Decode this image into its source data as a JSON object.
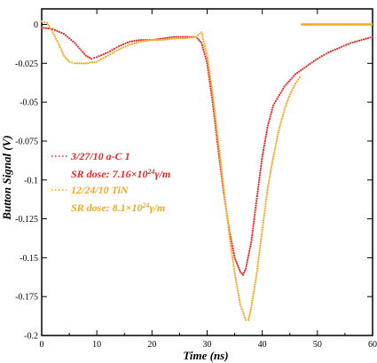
{
  "chart_data": {
    "type": "scatter",
    "xlabel": "Time (ns)",
    "ylabel": "Button Signal (V)",
    "xlim": [
      0,
      60
    ],
    "ylim": [
      -0.2,
      0.01
    ],
    "x_ticks": [
      "0",
      "10",
      "20",
      "30",
      "40",
      "50",
      "60"
    ],
    "y_ticks": [
      "0",
      "-0.025",
      "-0.05",
      "-0.075",
      "-0.1",
      "-0.125",
      "-0.15",
      "-0.175",
      "-0.2"
    ],
    "grid": false,
    "legend_placement": "left-middle",
    "series": [
      {
        "name": "3/27/10 a-C 1",
        "label_line2": "SR dose: 7.16×10",
        "label_exp": "24",
        "label_unit": "γ/m",
        "color": "#e8262a",
        "points": [
          [
            0,
            -0.002
          ],
          [
            2,
            -0.003
          ],
          [
            4,
            -0.006
          ],
          [
            6,
            -0.012
          ],
          [
            8,
            -0.02
          ],
          [
            9,
            -0.022
          ],
          [
            10,
            -0.021
          ],
          [
            12,
            -0.018
          ],
          [
            14,
            -0.014
          ],
          [
            16,
            -0.011
          ],
          [
            18,
            -0.01
          ],
          [
            20,
            -0.01
          ],
          [
            22,
            -0.009
          ],
          [
            24,
            -0.008
          ],
          [
            26,
            -0.008
          ],
          [
            28,
            -0.008
          ],
          [
            29,
            -0.012
          ],
          [
            30,
            -0.025
          ],
          [
            31,
            -0.05
          ],
          [
            32,
            -0.08
          ],
          [
            33,
            -0.108
          ],
          [
            34,
            -0.132
          ],
          [
            35,
            -0.15
          ],
          [
            36,
            -0.159
          ],
          [
            36.5,
            -0.161
          ],
          [
            37,
            -0.157
          ],
          [
            38,
            -0.14
          ],
          [
            39,
            -0.112
          ],
          [
            40,
            -0.085
          ],
          [
            41,
            -0.065
          ],
          [
            42,
            -0.052
          ],
          [
            44,
            -0.04
          ],
          [
            46,
            -0.032
          ],
          [
            48,
            -0.027
          ],
          [
            50,
            -0.022
          ],
          [
            52,
            -0.018
          ],
          [
            54,
            -0.015
          ],
          [
            56,
            -0.012
          ],
          [
            58,
            -0.01
          ],
          [
            60,
            -0.008
          ]
        ]
      },
      {
        "name": "12/24/10 TiN",
        "label_line2": "SR dose: 8.1×10",
        "label_exp": "24",
        "label_unit": "γ/m",
        "color": "#f5a623",
        "points": [
          [
            0,
            0.002
          ],
          [
            1,
            0.001
          ],
          [
            2,
            -0.005
          ],
          [
            3,
            -0.012
          ],
          [
            4,
            -0.02
          ],
          [
            5,
            -0.024
          ],
          [
            6,
            -0.025
          ],
          [
            8,
            -0.025
          ],
          [
            10,
            -0.024
          ],
          [
            12,
            -0.02
          ],
          [
            14,
            -0.016
          ],
          [
            16,
            -0.013
          ],
          [
            18,
            -0.011
          ],
          [
            20,
            -0.01
          ],
          [
            22,
            -0.01
          ],
          [
            24,
            -0.009
          ],
          [
            26,
            -0.009
          ],
          [
            28,
            -0.008
          ],
          [
            29,
            -0.005
          ],
          [
            30,
            -0.02
          ],
          [
            31,
            -0.045
          ],
          [
            32,
            -0.075
          ],
          [
            33,
            -0.105
          ],
          [
            34,
            -0.135
          ],
          [
            35,
            -0.16
          ],
          [
            36,
            -0.18
          ],
          [
            37,
            -0.19
          ],
          [
            37.5,
            -0.19
          ],
          [
            38,
            -0.182
          ],
          [
            39,
            -0.16
          ],
          [
            40,
            -0.132
          ],
          [
            41,
            -0.105
          ],
          [
            42,
            -0.085
          ],
          [
            43,
            -0.068
          ],
          [
            44,
            -0.055
          ],
          [
            45,
            -0.045
          ],
          [
            46,
            -0.038
          ],
          [
            46.8,
            -0.034
          ]
        ]
      },
      {
        "name": "12/24/10 TiN line",
        "color": "#f5a623",
        "points": [
          [
            47,
            0
          ],
          [
            60,
            0
          ]
        ]
      }
    ]
  }
}
